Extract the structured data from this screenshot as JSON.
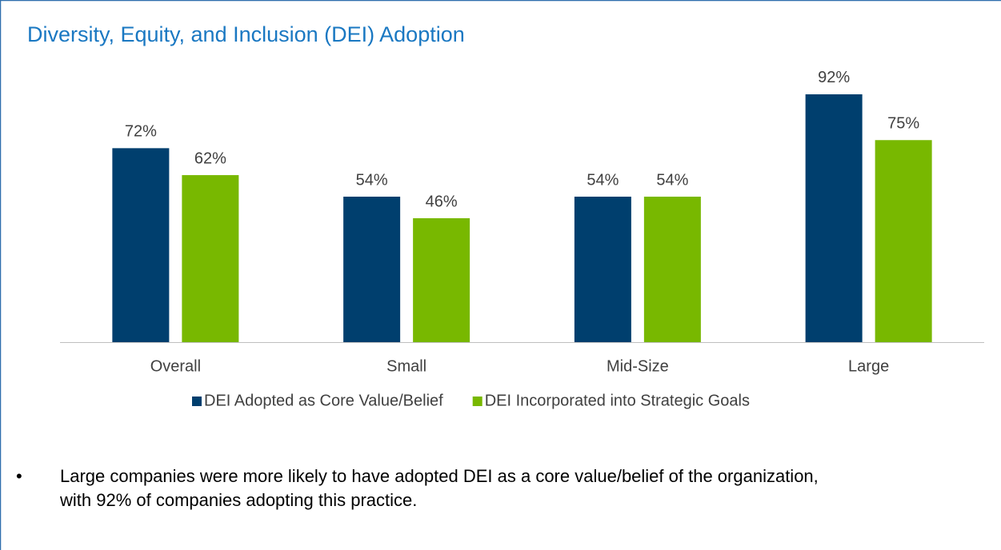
{
  "chart_data": {
    "type": "bar",
    "title": "Diversity, Equity, and Inclusion (DEI) Adoption",
    "categories": [
      "Overall",
      "Small",
      "Mid-Size",
      "Large"
    ],
    "series": [
      {
        "name": "DEI Adopted as Core Value/Belief",
        "color": "#003f6e",
        "values": [
          72,
          54,
          54,
          92
        ],
        "value_labels": [
          "72%",
          "54%",
          "54%",
          "92%"
        ]
      },
      {
        "name": "DEI Incorporated into Strategic Goals",
        "color": "#78b800",
        "values": [
          62,
          46,
          54,
          75
        ],
        "value_labels": [
          "62%",
          "46%",
          "54%",
          "75%"
        ]
      }
    ],
    "ylim": [
      0,
      100
    ],
    "legend": "bottom"
  },
  "notes": {
    "bullet": "•",
    "lines": [
      "Large companies were more likely to have adopted DEI as a core value/belief of the organization,",
      "with 92% of companies adopting this practice."
    ]
  }
}
